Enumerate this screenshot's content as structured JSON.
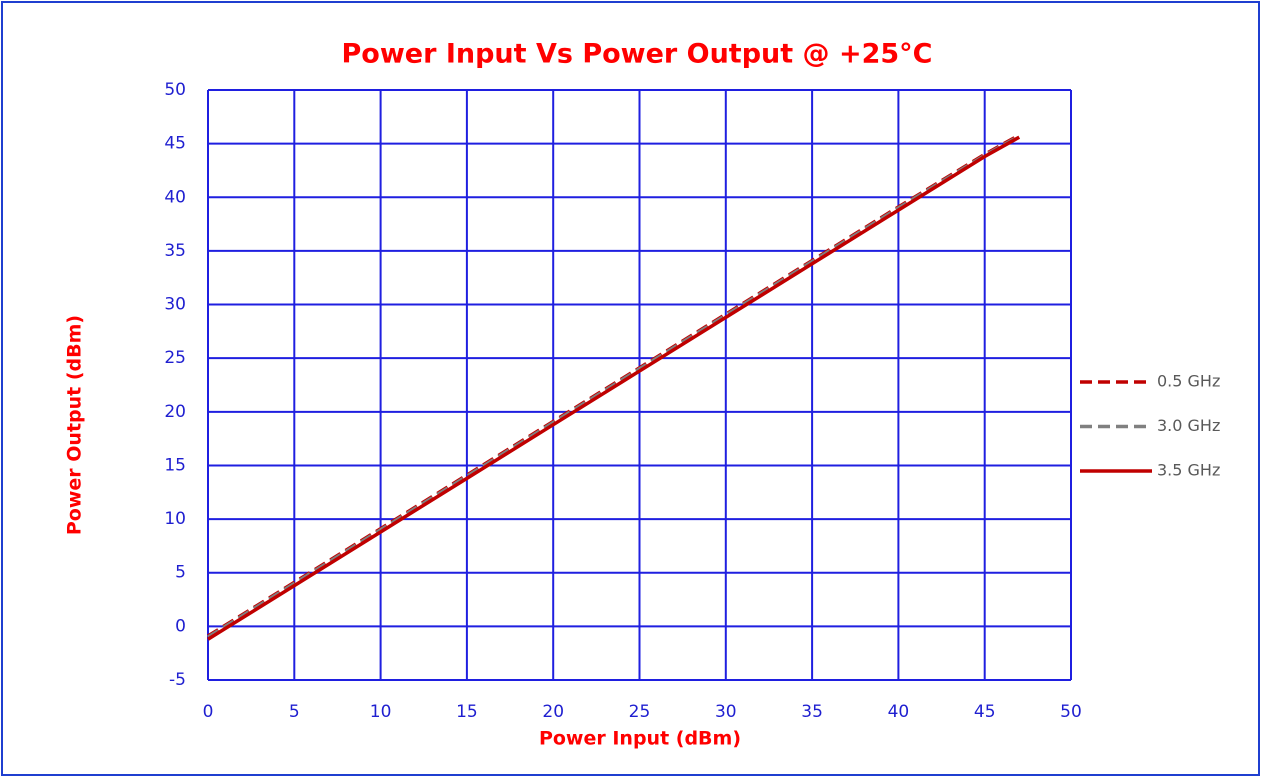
{
  "chart_data": {
    "type": "line",
    "title": "Power Input Vs Power Output @ +25°C",
    "xlabel": "Power Input (dBm)",
    "ylabel": "Power Output (dBm)",
    "x": [
      0,
      5,
      10,
      15,
      20,
      25,
      30,
      35,
      40,
      45,
      47
    ],
    "series": [
      {
        "name": "0.5 GHz",
        "color": "#c00000",
        "dashed": true,
        "values": [
          -0.9,
          4.1,
          9.1,
          14.1,
          19.1,
          24.1,
          29.1,
          34.1,
          39.1,
          44.0,
          45.8
        ]
      },
      {
        "name": "3.0 GHz",
        "color": "#808080",
        "dashed": true,
        "values": [
          -1.0,
          4.0,
          9.0,
          14.0,
          19.0,
          24.0,
          29.0,
          34.0,
          39.0,
          43.9,
          45.7
        ]
      },
      {
        "name": "3.5 GHz",
        "color": "#c00000",
        "dashed": false,
        "values": [
          -1.2,
          3.8,
          8.8,
          13.8,
          18.8,
          23.8,
          28.8,
          33.8,
          38.8,
          43.8,
          45.6
        ]
      }
    ],
    "xlim": [
      0,
      50
    ],
    "xticks": [
      0,
      5,
      10,
      15,
      20,
      25,
      30,
      35,
      40,
      45,
      50
    ],
    "ylim": [
      -5,
      50
    ],
    "yticks": [
      -5,
      0,
      5,
      10,
      15,
      20,
      25,
      30,
      35,
      40,
      45,
      50
    ],
    "grid": true,
    "legend": "right"
  }
}
